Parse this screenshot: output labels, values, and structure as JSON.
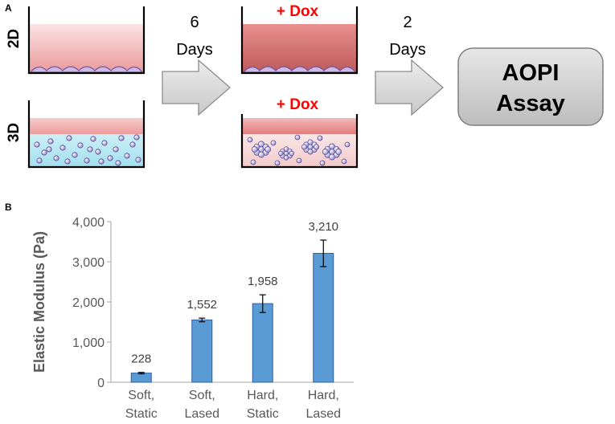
{
  "panel_a": {
    "label": "A",
    "row_2d": "2D",
    "row_3d": "3D",
    "step1_number": "6",
    "step1_unit": "Days",
    "step2_number": "2",
    "step2_unit": "Days",
    "dox_label": "+ Dox",
    "assay_line1": "AOPI",
    "assay_line2": "Assay"
  },
  "panel_b": {
    "label": "B"
  },
  "colors": {
    "bar": "#5b9bd5",
    "bar_edge": "#2e5f9e",
    "dox": "#ff0000",
    "arrow_fill": "#d9d9d9",
    "arrow_stroke": "#8c8c8c",
    "assay_fill": "#cfcfcf"
  },
  "chart_data": {
    "type": "bar",
    "categories": [
      [
        "Soft,",
        "Static"
      ],
      [
        "Soft,",
        "Lased"
      ],
      [
        "Hard,",
        "Static"
      ],
      [
        "Hard,",
        "Lased"
      ]
    ],
    "values": [
      228,
      1552,
      1958,
      3210
    ],
    "value_labels": [
      "228",
      "1,552",
      "1,958",
      "3,210"
    ],
    "error": [
      18,
      45,
      220,
      330
    ],
    "ylabel": "Elastic Modulus (Pa)",
    "ylim": [
      0,
      4000
    ],
    "yticks": [
      0,
      1000,
      2000,
      3000,
      4000
    ],
    "ytick_labels": [
      "0",
      "1,000",
      "2,000",
      "3,000",
      "4,000"
    ],
    "grid": false,
    "legend": "none"
  }
}
